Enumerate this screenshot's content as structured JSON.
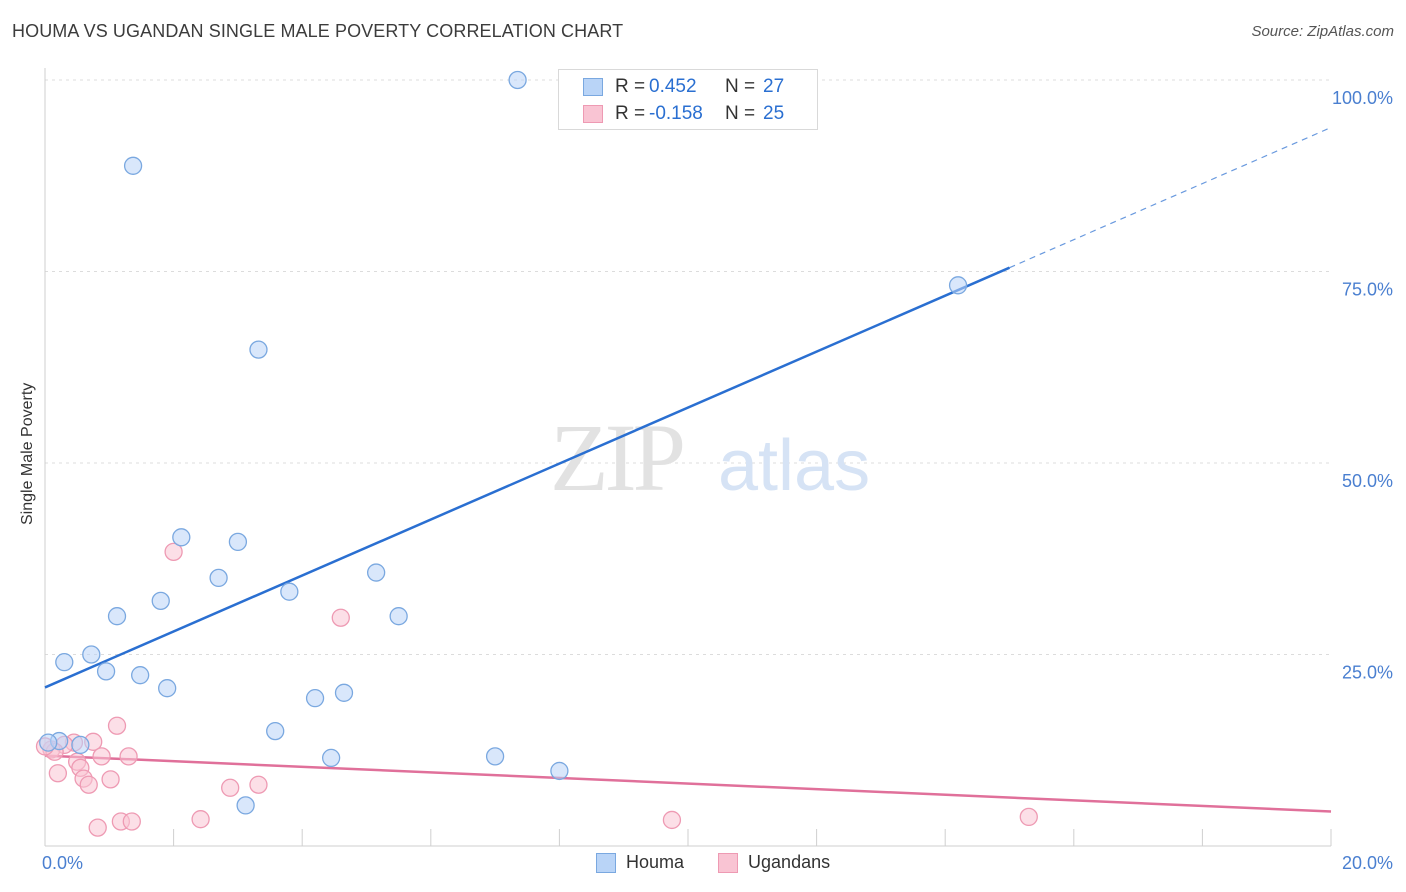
{
  "title": "HOUMA VS UGANDAN SINGLE MALE POVERTY CORRELATION CHART",
  "source": "Source: ZipAtlas.com",
  "watermark": {
    "zip": "ZIP",
    "atlas": "atlas"
  },
  "colors": {
    "houma_fill": "#b9d4f7",
    "houma_stroke": "#7aa8e0",
    "houma_line": "#2a6fd1",
    "ugandans_fill": "#f9c4d3",
    "ugandans_stroke": "#ee9ab3",
    "ugandans_line": "#e0709a",
    "axis_label": "#4a7fd0",
    "grid": "#dcdcdc"
  },
  "legend": {
    "rows": [
      {
        "r_label": "R =",
        "r_value": "0.452",
        "n_label": "N =",
        "n_value": "27"
      },
      {
        "r_label": "R =",
        "r_value": "-0.158",
        "n_label": "N =",
        "n_value": "25"
      }
    ]
  },
  "bottom_legend": {
    "houma": "Houma",
    "ugandans": "Ugandans"
  },
  "chart_data": {
    "type": "scatter",
    "title": "HOUMA VS UGANDAN SINGLE MALE POVERTY CORRELATION CHART",
    "xlabel": "",
    "ylabel": "Single Male Poverty",
    "xlim": [
      0,
      20
    ],
    "ylim": [
      0,
      100
    ],
    "x_tick_labels": [
      "0.0%",
      "20.0%"
    ],
    "y_tick_labels": [
      "25.0%",
      "50.0%",
      "75.0%",
      "100.0%"
    ],
    "y_ticks": [
      25,
      50,
      75,
      100
    ],
    "grid": true,
    "legend_position": "top-center",
    "series": [
      {
        "name": "Houma",
        "points": [
          [
            7.35,
            100.0
          ],
          [
            1.37,
            88.8
          ],
          [
            3.32,
            64.8
          ],
          [
            14.2,
            73.2
          ],
          [
            2.12,
            40.3
          ],
          [
            3.0,
            39.7
          ],
          [
            2.7,
            35.0
          ],
          [
            5.15,
            35.7
          ],
          [
            1.8,
            32.0
          ],
          [
            3.8,
            33.2
          ],
          [
            1.12,
            30.0
          ],
          [
            5.5,
            30.0
          ],
          [
            0.3,
            24.0
          ],
          [
            0.72,
            25.0
          ],
          [
            0.95,
            22.8
          ],
          [
            1.48,
            22.3
          ],
          [
            1.9,
            20.6
          ],
          [
            4.65,
            20.0
          ],
          [
            4.2,
            19.3
          ],
          [
            3.58,
            15.0
          ],
          [
            0.22,
            13.7
          ],
          [
            0.55,
            13.2
          ],
          [
            7.0,
            11.7
          ],
          [
            4.45,
            11.5
          ],
          [
            8.0,
            9.8
          ],
          [
            3.12,
            5.3
          ],
          [
            0.05,
            13.5
          ]
        ],
        "trend_line": {
          "x": [
            0,
            15.0
          ],
          "y": [
            20.7,
            75.5
          ],
          "dashed_extension": {
            "x": [
              15.0,
              20.0
            ],
            "y": [
              75.5,
              93.8
            ]
          }
        }
      },
      {
        "name": "Ugandans",
        "points": [
          [
            2.0,
            38.4
          ],
          [
            4.6,
            29.8
          ],
          [
            1.12,
            15.7
          ],
          [
            0.45,
            13.5
          ],
          [
            0.3,
            13.2
          ],
          [
            0.1,
            12.6
          ],
          [
            0.15,
            12.3
          ],
          [
            0.75,
            13.6
          ],
          [
            0.5,
            11.0
          ],
          [
            1.3,
            11.7
          ],
          [
            0.88,
            11.7
          ],
          [
            0.55,
            10.2
          ],
          [
            0.2,
            9.5
          ],
          [
            0.6,
            8.8
          ],
          [
            1.02,
            8.7
          ],
          [
            0.68,
            8.0
          ],
          [
            3.32,
            8.0
          ],
          [
            2.88,
            7.6
          ],
          [
            2.42,
            3.5
          ],
          [
            1.18,
            3.2
          ],
          [
            1.35,
            3.2
          ],
          [
            0.82,
            2.4
          ],
          [
            9.75,
            3.4
          ],
          [
            15.3,
            3.8
          ],
          [
            0.0,
            13.0
          ]
        ],
        "trend_line": {
          "x": [
            0,
            20.0
          ],
          "y": [
            11.8,
            4.5
          ]
        }
      }
    ]
  }
}
